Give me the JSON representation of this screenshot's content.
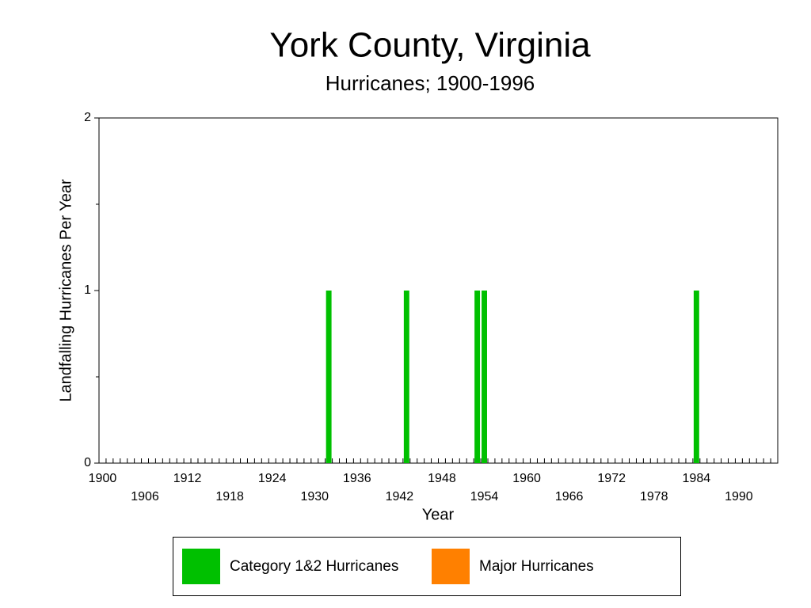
{
  "chart_data": {
    "type": "bar",
    "title": "York County, Virginia",
    "subtitle": "Hurricanes;  1900-1996",
    "x_label": "Year",
    "y_label": "Landfalling Hurricanes Per Year",
    "x": [
      1932,
      1943,
      1953,
      1954,
      1984
    ],
    "series": [
      {
        "name": "Category 1&2 Hurricanes",
        "color": "#00c000",
        "values": [
          1,
          1,
          1,
          1,
          1
        ]
      },
      {
        "name": "Major Hurricanes",
        "color": "#ff8000",
        "values": [
          0,
          0,
          0,
          0,
          0
        ]
      }
    ],
    "xlim": [
      1900,
      1996
    ],
    "xticks": [
      1900,
      1906,
      1912,
      1918,
      1924,
      1930,
      1936,
      1942,
      1948,
      1954,
      1960,
      1966,
      1972,
      1978,
      1984,
      1990
    ],
    "xminorticks": [
      1900,
      1901,
      1902,
      1903,
      1904,
      1905,
      1906,
      1907,
      1908,
      1909,
      1910,
      1911,
      1912,
      1913,
      1914,
      1915,
      1916,
      1917,
      1918,
      1919,
      1920,
      1921,
      1922,
      1923,
      1924,
      1925,
      1926,
      1927,
      1928,
      1929,
      1930,
      1931,
      1932,
      1933,
      1934,
      1935,
      1936,
      1937,
      1938,
      1939,
      1940,
      1941,
      1942,
      1943,
      1944,
      1945,
      1946,
      1947,
      1948,
      1949,
      1950,
      1951,
      1952,
      1953,
      1954,
      1955,
      1956,
      1957,
      1958,
      1959,
      1960,
      1961,
      1962,
      1963,
      1964,
      1965,
      1966,
      1967,
      1968,
      1969,
      1970,
      1971,
      1972,
      1973,
      1974,
      1975,
      1976,
      1977,
      1978,
      1979,
      1980,
      1981,
      1982,
      1983,
      1984,
      1985,
      1986,
      1987,
      1988,
      1989,
      1990,
      1991,
      1992,
      1993,
      1994,
      1995,
      1996
    ],
    "ylim": [
      0,
      2
    ],
    "yticks": [
      0,
      1,
      2
    ],
    "yminorticks": [
      0.5,
      1.5
    ],
    "grid": false
  }
}
